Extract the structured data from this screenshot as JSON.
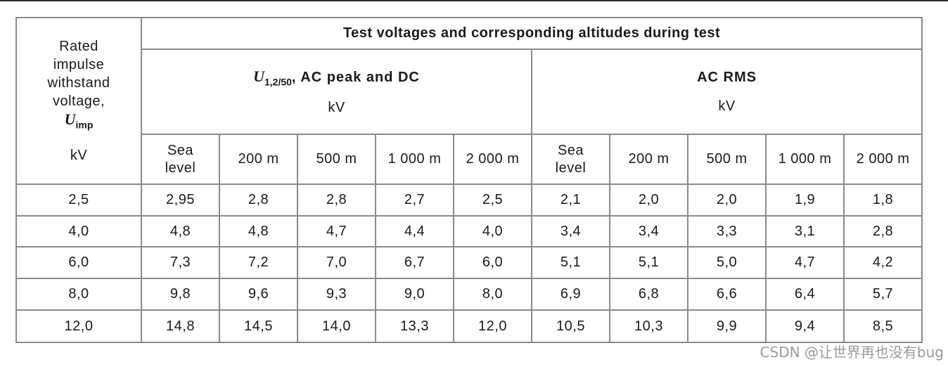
{
  "table": {
    "corner_header": {
      "lines": [
        "Rated",
        "impulse",
        "withstand",
        "voltage,"
      ],
      "symbol": "U",
      "symbol_sub": "imp",
      "unit": "kV"
    },
    "main_header": "Test voltages and corresponding altitudes during test",
    "groups": [
      {
        "symbol": "U",
        "symbol_sub": "1,2/50",
        "title_suffix": ", AC peak and DC",
        "unit": "kV"
      },
      {
        "symbol": "",
        "symbol_sub": "",
        "title_suffix": "AC RMS",
        "unit": "kV"
      }
    ],
    "altitudes": [
      [
        "Sea",
        "level"
      ],
      [
        "200 m"
      ],
      [
        "500 m"
      ],
      [
        "1 000 m"
      ],
      [
        "2 000 m"
      ],
      [
        "Sea",
        "level"
      ],
      [
        "200 m"
      ],
      [
        "500 m"
      ],
      [
        "1 000 m"
      ],
      [
        "2 000 m"
      ]
    ],
    "rows": [
      [
        "2,5",
        "2,95",
        "2,8",
        "2,8",
        "2,7",
        "2,5",
        "2,1",
        "2,0",
        "2,0",
        "1,9",
        "1,8"
      ],
      [
        "4,0",
        "4,8",
        "4,8",
        "4,7",
        "4,4",
        "4,0",
        "3,4",
        "3,4",
        "3,3",
        "3,1",
        "2,8"
      ],
      [
        "6,0",
        "7,3",
        "7,2",
        "7,0",
        "6,7",
        "6,0",
        "5,1",
        "5,1",
        "5,0",
        "4,7",
        "4,2"
      ],
      [
        "8,0",
        "9,8",
        "9,6",
        "9,3",
        "9,0",
        "8,0",
        "6,9",
        "6,8",
        "6,6",
        "6,4",
        "5,7"
      ],
      [
        "12,0",
        "14,8",
        "14,5",
        "14,0",
        "13,3",
        "12,0",
        "10,5",
        "10,3",
        "9,9",
        "9,4",
        "8,5"
      ]
    ]
  },
  "watermark": "CSDN @让世界再也没有bug"
}
